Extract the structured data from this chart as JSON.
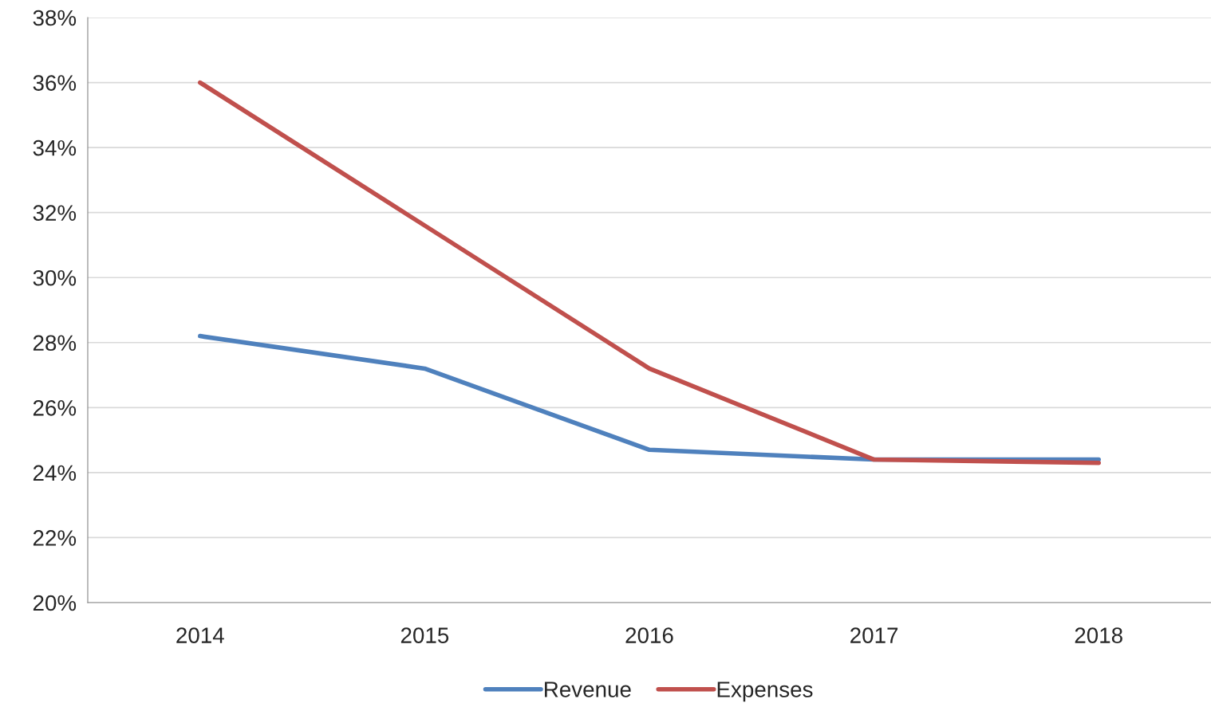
{
  "chart_data": {
    "type": "line",
    "categories": [
      "2014",
      "2015",
      "2016",
      "2017",
      "2018"
    ],
    "series": [
      {
        "name": "Revenue",
        "color": "#4f81bd",
        "values": [
          28.2,
          27.2,
          24.7,
          24.4,
          24.4
        ]
      },
      {
        "name": "Expenses",
        "color": "#c0504d",
        "values": [
          36.0,
          31.6,
          27.2,
          24.4,
          24.3
        ]
      }
    ],
    "ylim": [
      20,
      38
    ],
    "yticks": [
      {
        "value": 20,
        "label": "20%"
      },
      {
        "value": 22,
        "label": "22%"
      },
      {
        "value": 24,
        "label": "24%"
      },
      {
        "value": 26,
        "label": "26%"
      },
      {
        "value": 28,
        "label": "28%"
      },
      {
        "value": 30,
        "label": "30%"
      },
      {
        "value": 32,
        "label": "32%"
      },
      {
        "value": 34,
        "label": "34%"
      },
      {
        "value": 36,
        "label": "36%"
      },
      {
        "value": 38,
        "label": "38%"
      }
    ],
    "grid": "y",
    "legend": "bottom",
    "marker": "none",
    "line_style": "solid"
  }
}
